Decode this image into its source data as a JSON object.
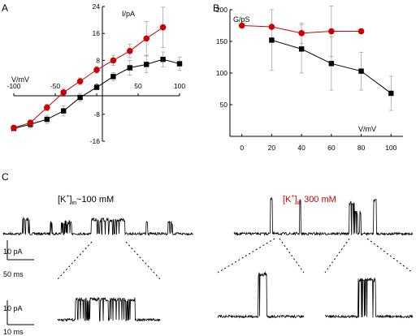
{
  "panels": {
    "a": "A",
    "b": "B",
    "c": "C"
  },
  "colors": {
    "low_k": "#000000",
    "high_k": "#cc0000"
  },
  "chart_data": [
    {
      "type": "line",
      "panel": "A",
      "xlabel": "V/mV",
      "ylabel": "I/pA",
      "xlim": [
        -100,
        100
      ],
      "ylim": [
        -16,
        24
      ],
      "xticks": [
        -100,
        -50,
        0,
        50,
        100
      ],
      "xtick_labels": [
        "-100",
        "-50",
        "0",
        "50",
        "100"
      ],
      "yticks": [
        -16,
        -8,
        8,
        16,
        24
      ],
      "ytick_labels": [
        "-16",
        "-8",
        "8",
        "16",
        "24"
      ],
      "series": [
        {
          "color": "#000000",
          "marker": "square",
          "x": [
            -100,
            -80,
            -60,
            -40,
            -20,
            0,
            20,
            40,
            60,
            80,
            100
          ],
          "y": [
            -12.2,
            -11,
            -9.5,
            -7,
            -3,
            0,
            3.2,
            5.8,
            6.8,
            8.3,
            7
          ],
          "err": [
            0.5,
            1,
            1.2,
            1.5,
            1.2,
            0.5,
            1.2,
            2.2,
            2.5,
            2.2,
            2
          ]
        },
        {
          "color": "#cc0000",
          "marker": "circle",
          "x": [
            -100,
            -80,
            -60,
            -40,
            -20,
            0,
            20,
            40,
            60,
            80
          ],
          "y": [
            -12,
            -10.5,
            -6,
            -1.5,
            1.8,
            5.2,
            8,
            10.8,
            14.5,
            17.8
          ],
          "err": [
            0.5,
            0.8,
            1,
            1.2,
            1,
            1,
            1.5,
            2,
            5,
            6
          ]
        }
      ]
    },
    {
      "type": "line",
      "panel": "B",
      "xlabel": "V/mV",
      "ylabel": "G/pS",
      "xlim": [
        -8,
        108
      ],
      "ylim": [
        0,
        200
      ],
      "xticks": [
        0,
        20,
        40,
        60,
        80,
        100
      ],
      "xtick_labels": [
        "0",
        "20",
        "40",
        "60",
        "80",
        "100"
      ],
      "yticks": [
        50,
        100,
        150,
        200
      ],
      "ytick_labels": [
        "50",
        "100",
        "150",
        "200"
      ],
      "series": [
        {
          "color": "#000000",
          "marker": "square",
          "x": [
            20,
            40,
            60,
            80,
            100
          ],
          "y": [
            152,
            138,
            115,
            103,
            68
          ],
          "err": [
            48,
            38,
            42,
            30,
            27
          ]
        },
        {
          "color": "#cc0000",
          "marker": "circle",
          "x": [
            0,
            20,
            40,
            60,
            80
          ],
          "y": [
            175,
            173,
            163,
            166,
            166
          ],
          "err": [
            0,
            0,
            16,
            40,
            0
          ]
        }
      ]
    }
  ],
  "traces": {
    "left_condition": "[K⁺]in~100 mM",
    "right_condition": "[K⁺]in 300 mM",
    "scale_top_current": "10 pA",
    "scale_top_time": "50 ms",
    "scale_bottom_current": "10 pA",
    "scale_bottom_time": "10 ms"
  }
}
